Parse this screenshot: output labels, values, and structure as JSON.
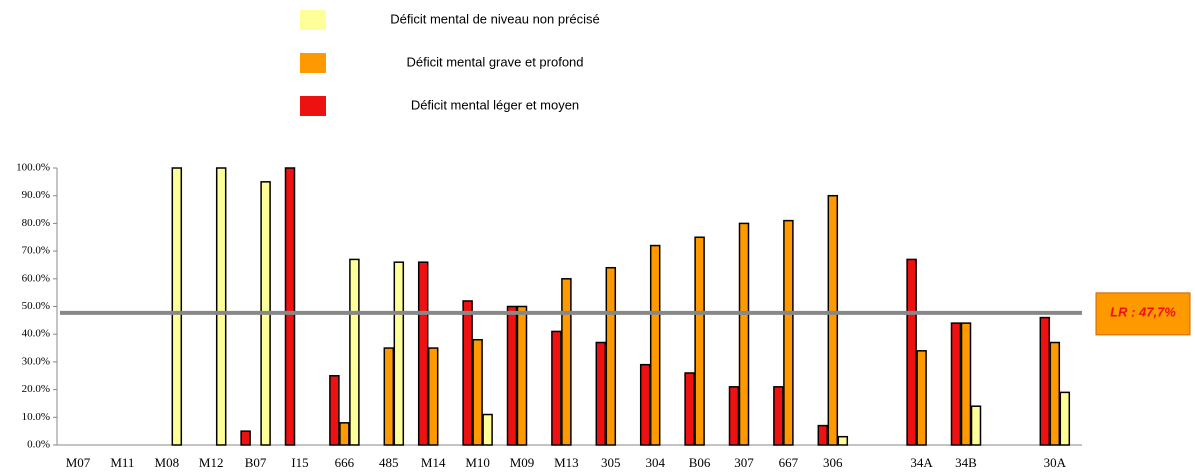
{
  "chart_data": {
    "type": "bar",
    "categories": [
      "M07",
      "M11",
      "M08",
      "M12",
      "B07",
      "I15",
      "666",
      "485",
      "M14",
      "M10",
      "M09",
      "M13",
      "305",
      "304",
      "B06",
      "307",
      "667",
      "306",
      null,
      "34A",
      "34B",
      null,
      "30A"
    ],
    "series": [
      {
        "name": "Déficit mental de niveau non précisé",
        "color": "#ffff99",
        "values": [
          null,
          null,
          100,
          100,
          95,
          null,
          67,
          66,
          null,
          11,
          null,
          null,
          null,
          null,
          null,
          null,
          null,
          3,
          null,
          null,
          14,
          null,
          19
        ]
      },
      {
        "name": "Déficit mental grave et profond",
        "color": "#ff9900",
        "values": [
          null,
          null,
          null,
          null,
          null,
          null,
          8,
          35,
          35,
          38,
          50,
          60,
          64,
          72,
          75,
          80,
          81,
          90,
          null,
          34,
          44,
          null,
          37
        ]
      },
      {
        "name": "Déficit mental léger et moyen",
        "color": "#ee1111",
        "values": [
          null,
          null,
          null,
          null,
          5,
          100,
          25,
          null,
          66,
          52,
          50,
          41,
          37,
          29,
          26,
          21,
          21,
          7,
          null,
          67,
          44,
          null,
          46
        ]
      }
    ],
    "bar_order": [
      2,
      1,
      0
    ],
    "ylim": [
      0,
      100
    ],
    "yticks": [
      {
        "value": 0,
        "label": "0.0%"
      },
      {
        "value": 10,
        "label": "10.0%"
      },
      {
        "value": 20,
        "label": "20.0%"
      },
      {
        "value": 30,
        "label": "30.0%"
      },
      {
        "value": 40,
        "label": "40.0%"
      },
      {
        "value": 50,
        "label": "50.0%"
      },
      {
        "value": 60,
        "label": "60.0%"
      },
      {
        "value": 70,
        "label": "70.0%"
      },
      {
        "value": 80,
        "label": "80.0%"
      },
      {
        "value": 90,
        "label": "90.0%"
      },
      {
        "value": 100,
        "label": "100.0%"
      }
    ],
    "reference_line": {
      "value": 47.7,
      "label": "LR : 47,7%"
    }
  }
}
